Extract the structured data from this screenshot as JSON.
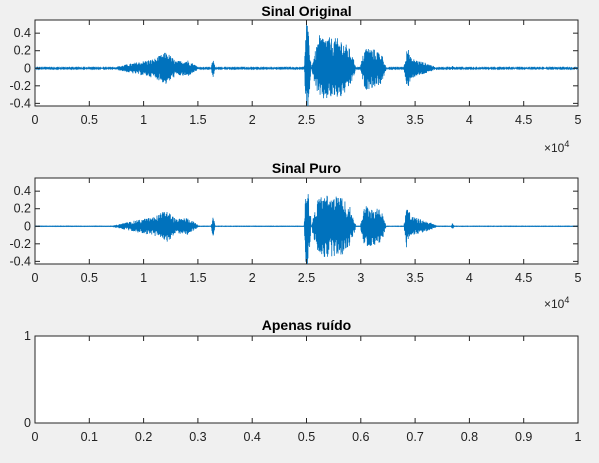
{
  "figure": {
    "background": "#f0f0f0"
  },
  "chart_data": [
    {
      "type": "line",
      "title": "Sinal Original",
      "xlabel": "",
      "ylabel": "",
      "xlim": [
        0,
        50000
      ],
      "ylim": [
        -0.43,
        0.55
      ],
      "xticks": [
        "0",
        "0.5",
        "1",
        "1.5",
        "2",
        "2.5",
        "3",
        "3.5",
        "4",
        "4.5",
        "5"
      ],
      "xtick_values": [
        0,
        5000,
        10000,
        15000,
        20000,
        25000,
        30000,
        35000,
        40000,
        45000,
        50000
      ],
      "x_multiplier": {
        "base": "×10",
        "exp": "4"
      },
      "yticks": [
        "-0.4",
        "-0.2",
        "0",
        "0.2",
        "0.4"
      ],
      "ytick_values": [
        -0.4,
        -0.2,
        0,
        0.2,
        0.4
      ],
      "grid": false,
      "color": "#0072bd",
      "noise_floor": 0.006,
      "segments": [
        {
          "x": [
            7200,
            9000,
            11000,
            12100,
            13000,
            14000,
            15000
          ],
          "amp": [
            0.01,
            0.06,
            0.11,
            0.19,
            0.08,
            0.1,
            0.02
          ]
        },
        {
          "x": [
            16200,
            16400,
            16600
          ],
          "amp": [
            0.0,
            0.12,
            0.0
          ]
        },
        {
          "x": [
            24800,
            25000,
            25150,
            25400
          ],
          "amp": [
            0.05,
            0.55,
            0.43,
            0.1
          ]
        },
        {
          "x": [
            25500,
            26200,
            27200,
            28200,
            29000,
            29500
          ],
          "amp": [
            0.05,
            0.38,
            0.35,
            0.34,
            0.22,
            0.04
          ]
        },
        {
          "x": [
            30000,
            30400,
            31200,
            31900,
            32300
          ],
          "amp": [
            0.05,
            0.25,
            0.22,
            0.18,
            0.03
          ]
        },
        {
          "x": [
            34000,
            34250,
            34600,
            35500,
            36500,
            37000
          ],
          "amp": [
            0.05,
            0.28,
            0.12,
            0.08,
            0.04,
            0.0
          ]
        },
        {
          "x": [
            38300,
            38450,
            38600
          ],
          "amp": [
            0.0,
            0.04,
            0.0
          ]
        }
      ]
    },
    {
      "type": "line",
      "title": "Sinal Puro",
      "xlabel": "",
      "ylabel": "",
      "xlim": [
        0,
        50000
      ],
      "ylim": [
        -0.43,
        0.55
      ],
      "xticks": [
        "0",
        "0.5",
        "1",
        "1.5",
        "2",
        "2.5",
        "3",
        "3.5",
        "4",
        "4.5",
        "5"
      ],
      "xtick_values": [
        0,
        5000,
        10000,
        15000,
        20000,
        25000,
        30000,
        35000,
        40000,
        45000,
        50000
      ],
      "x_multiplier": {
        "base": "×10",
        "exp": "4"
      },
      "yticks": [
        "-0.4",
        "-0.2",
        "0",
        "0.2",
        "0.4"
      ],
      "ytick_values": [
        -0.4,
        -0.2,
        0,
        0.2,
        0.4
      ],
      "grid": false,
      "color": "#0072bd",
      "noise_floor": 0.002,
      "segments": [
        {
          "x": [
            7200,
            9000,
            11000,
            12100,
            13000,
            14000,
            15000
          ],
          "amp": [
            0.01,
            0.06,
            0.11,
            0.19,
            0.08,
            0.1,
            0.02
          ]
        },
        {
          "x": [
            16200,
            16400,
            16600
          ],
          "amp": [
            0.0,
            0.12,
            0.0
          ]
        },
        {
          "x": [
            24800,
            25000,
            25150,
            25400
          ],
          "amp": [
            0.05,
            0.55,
            0.43,
            0.1
          ]
        },
        {
          "x": [
            25500,
            26200,
            27200,
            28200,
            29000,
            29500
          ],
          "amp": [
            0.05,
            0.38,
            0.35,
            0.34,
            0.22,
            0.04
          ]
        },
        {
          "x": [
            30000,
            30400,
            31200,
            31900,
            32300
          ],
          "amp": [
            0.05,
            0.25,
            0.22,
            0.18,
            0.03
          ]
        },
        {
          "x": [
            34000,
            34250,
            34600,
            35500,
            36500,
            37000
          ],
          "amp": [
            0.05,
            0.28,
            0.12,
            0.08,
            0.04,
            0.0
          ]
        },
        {
          "x": [
            38300,
            38450,
            38600
          ],
          "amp": [
            0.0,
            0.04,
            0.0
          ]
        }
      ]
    },
    {
      "type": "line",
      "title": "Apenas ruído",
      "xlabel": "",
      "ylabel": "",
      "xlim": [
        0,
        1
      ],
      "ylim": [
        0,
        1
      ],
      "xticks": [
        "0",
        "0.1",
        "0.2",
        "0.3",
        "0.4",
        "0.5",
        "0.6",
        "0.7",
        "0.8",
        "0.9",
        "1"
      ],
      "xtick_values": [
        0,
        0.1,
        0.2,
        0.3,
        0.4,
        0.5,
        0.6,
        0.7,
        0.8,
        0.9,
        1
      ],
      "yticks": [
        "0",
        "1"
      ],
      "ytick_values": [
        0,
        1
      ],
      "grid": false,
      "color": "#0072bd",
      "segments": []
    }
  ]
}
